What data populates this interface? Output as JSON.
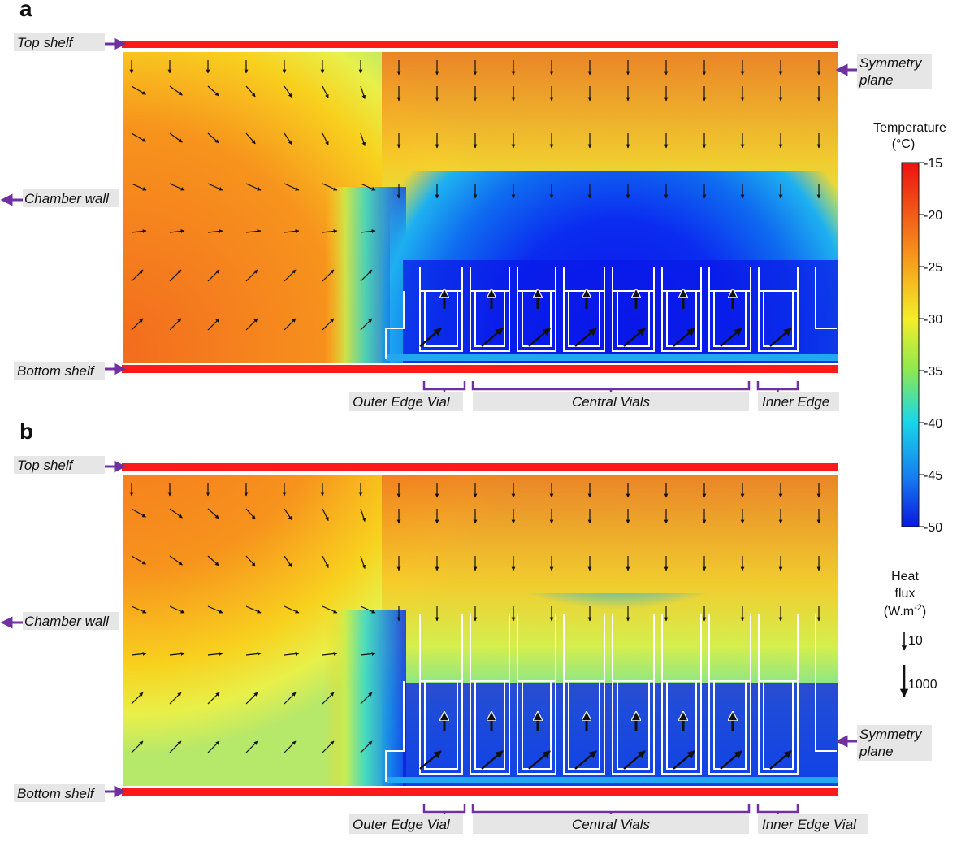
{
  "panels": [
    {
      "letter": "a",
      "labels": {
        "top_shelf": "Top shelf",
        "bottom_shelf": "Bottom shelf",
        "chamber_wall": "Chamber wall",
        "symmetry_line1": "Symmetry",
        "symmetry_line2": "plane",
        "outer": "Outer Edge Vial",
        "central": "Central Vials",
        "inner": "Inner Edge"
      }
    },
    {
      "letter": "b",
      "labels": {
        "top_shelf": "Top shelf",
        "bottom_shelf": "Bottom shelf",
        "chamber_wall": "Chamber wall",
        "symmetry_line1": "Symmetry",
        "symmetry_line2": "plane",
        "outer": "Outer Edge Vial",
        "central": "Central Vials",
        "inner": "Inner Edge Vial"
      }
    }
  ],
  "colorbar": {
    "title_line1": "Temperature",
    "title_line2": "(°C)",
    "min": -50,
    "max": -15,
    "ticks": [
      "-15",
      "-20",
      "-25",
      "-30",
      "-35",
      "-40",
      "-45",
      "-50"
    ]
  },
  "heat_flux_legend": {
    "line1": "Heat",
    "line2": "flux",
    "line3": "(W.m",
    "sup": "-2",
    "line3_end": ")",
    "small": "10",
    "large": "1000"
  },
  "colors": {
    "shelf": "#ff1a1a",
    "accent": "#7030a0",
    "label_bg": "#e6e6e6"
  }
}
